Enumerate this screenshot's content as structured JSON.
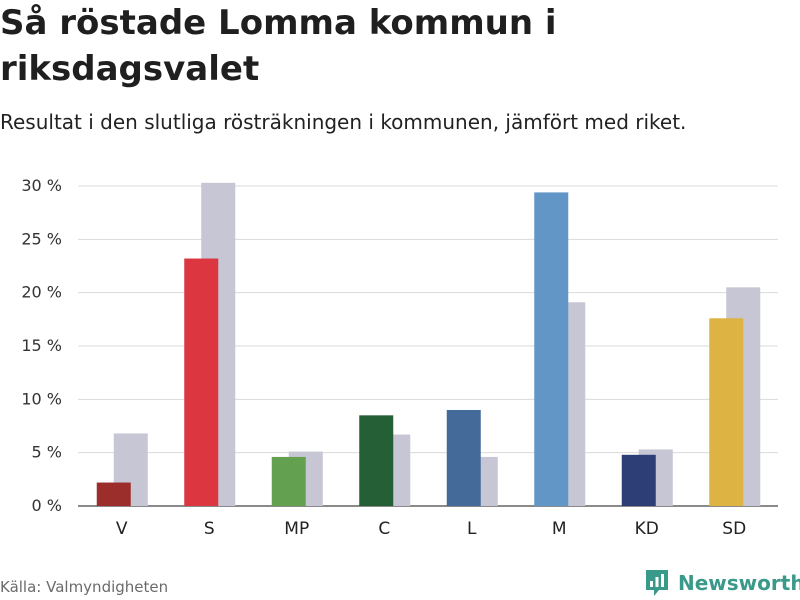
{
  "title": "Så röstade Lomma kommun i riksdagsvalet",
  "subtitle": "Resultat i den slutliga rösträkningen i kommunen, jämfört med riket.",
  "source": "Källa: Valmyndigheten",
  "brand": {
    "name": "Newsworthy",
    "icon": "bar-chart-logo-icon",
    "color": "#3a9a8a"
  },
  "chart_data": {
    "type": "bar",
    "title": "Så röstade Lomma kommun i riksdagsvalet",
    "xlabel": "",
    "ylabel": "",
    "ylim": [
      0,
      30
    ],
    "yticks": [
      0,
      5,
      10,
      15,
      20,
      25,
      30
    ],
    "ytick_labels": [
      "0 %",
      "5 %",
      "10 %",
      "15 %",
      "20 %",
      "25 %",
      "30 %"
    ],
    "grid": true,
    "categories": [
      "V",
      "S",
      "MP",
      "C",
      "L",
      "M",
      "KD",
      "SD"
    ],
    "series": [
      {
        "name": "Lomma kommun",
        "values": [
          2.2,
          23.2,
          4.6,
          8.5,
          9.0,
          29.4,
          4.8,
          17.6
        ],
        "colors": [
          "#9b2e2a",
          "#dc3640",
          "#63a04f",
          "#245f36",
          "#436a98",
          "#6196c6",
          "#2d3d75",
          "#ddb444"
        ]
      },
      {
        "name": "Riket",
        "values": [
          6.8,
          30.3,
          5.1,
          6.7,
          4.6,
          19.1,
          5.3,
          20.5
        ],
        "color": "#c6c6d4"
      }
    ]
  }
}
